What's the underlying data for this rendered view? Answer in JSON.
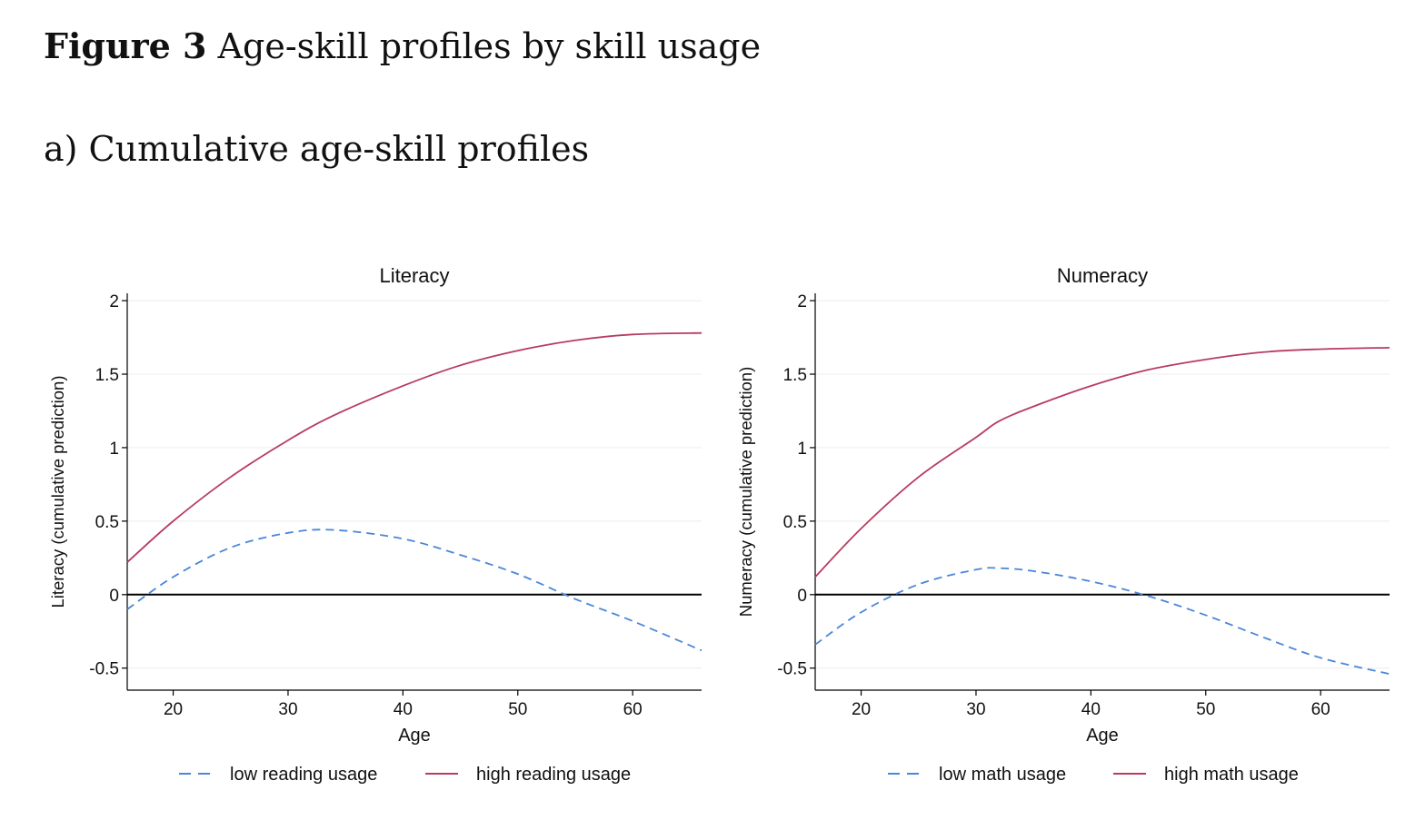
{
  "figure": {
    "label": "Figure 3",
    "title": "Age-skill profiles by skill usage",
    "subtitle": "a) Cumulative age-skill profiles"
  },
  "chart_data": [
    {
      "type": "line",
      "title": "Literacy",
      "xlabel": "Age",
      "ylabel": "Literacy (cumulative prediction)",
      "xlim": [
        16,
        66
      ],
      "ylim": [
        -0.65,
        2.05
      ],
      "xticks": [
        20,
        30,
        40,
        50,
        60
      ],
      "yticks": [
        -0.5,
        0,
        0.5,
        1,
        1.5,
        2
      ],
      "ytick_labels": [
        "-0.5",
        "0",
        "0.5",
        "1",
        "1.5",
        "2"
      ],
      "grid": "horizontal",
      "legend": "bottom",
      "x": [
        16,
        20,
        25,
        30,
        34,
        40,
        45,
        50,
        55,
        60,
        66
      ],
      "series": [
        {
          "name": "low reading usage",
          "style": "dashed",
          "color": "#4a86d9",
          "values": [
            -0.1,
            0.12,
            0.32,
            0.42,
            0.44,
            0.38,
            0.27,
            0.14,
            -0.03,
            -0.18,
            -0.38
          ]
        },
        {
          "name": "high reading usage",
          "style": "solid",
          "color": "#b73c60",
          "values": [
            0.22,
            0.5,
            0.8,
            1.05,
            1.22,
            1.42,
            1.56,
            1.66,
            1.73,
            1.77,
            1.78
          ]
        }
      ]
    },
    {
      "type": "line",
      "title": "Numeracy",
      "xlabel": "Age",
      "ylabel": "Numeracy (cumulative prediction)",
      "xlim": [
        16,
        66
      ],
      "ylim": [
        -0.65,
        2.05
      ],
      "xticks": [
        20,
        30,
        40,
        50,
        60
      ],
      "yticks": [
        -0.5,
        0,
        0.5,
        1,
        1.5,
        2
      ],
      "ytick_labels": [
        "-0.5",
        "0",
        "0.5",
        "1",
        "1.5",
        "2"
      ],
      "grid": "horizontal",
      "legend": "bottom",
      "x": [
        16,
        20,
        25,
        30,
        32,
        35,
        40,
        45,
        50,
        55,
        60,
        66
      ],
      "series": [
        {
          "name": "low math usage",
          "style": "dashed",
          "color": "#4a86d9",
          "values": [
            -0.34,
            -0.12,
            0.07,
            0.17,
            0.18,
            0.16,
            0.09,
            -0.01,
            -0.14,
            -0.29,
            -0.43,
            -0.54
          ]
        },
        {
          "name": "high math usage",
          "style": "solid",
          "color": "#b73c60",
          "values": [
            0.12,
            0.45,
            0.8,
            1.07,
            1.18,
            1.28,
            1.42,
            1.53,
            1.6,
            1.65,
            1.67,
            1.68
          ]
        }
      ]
    }
  ]
}
